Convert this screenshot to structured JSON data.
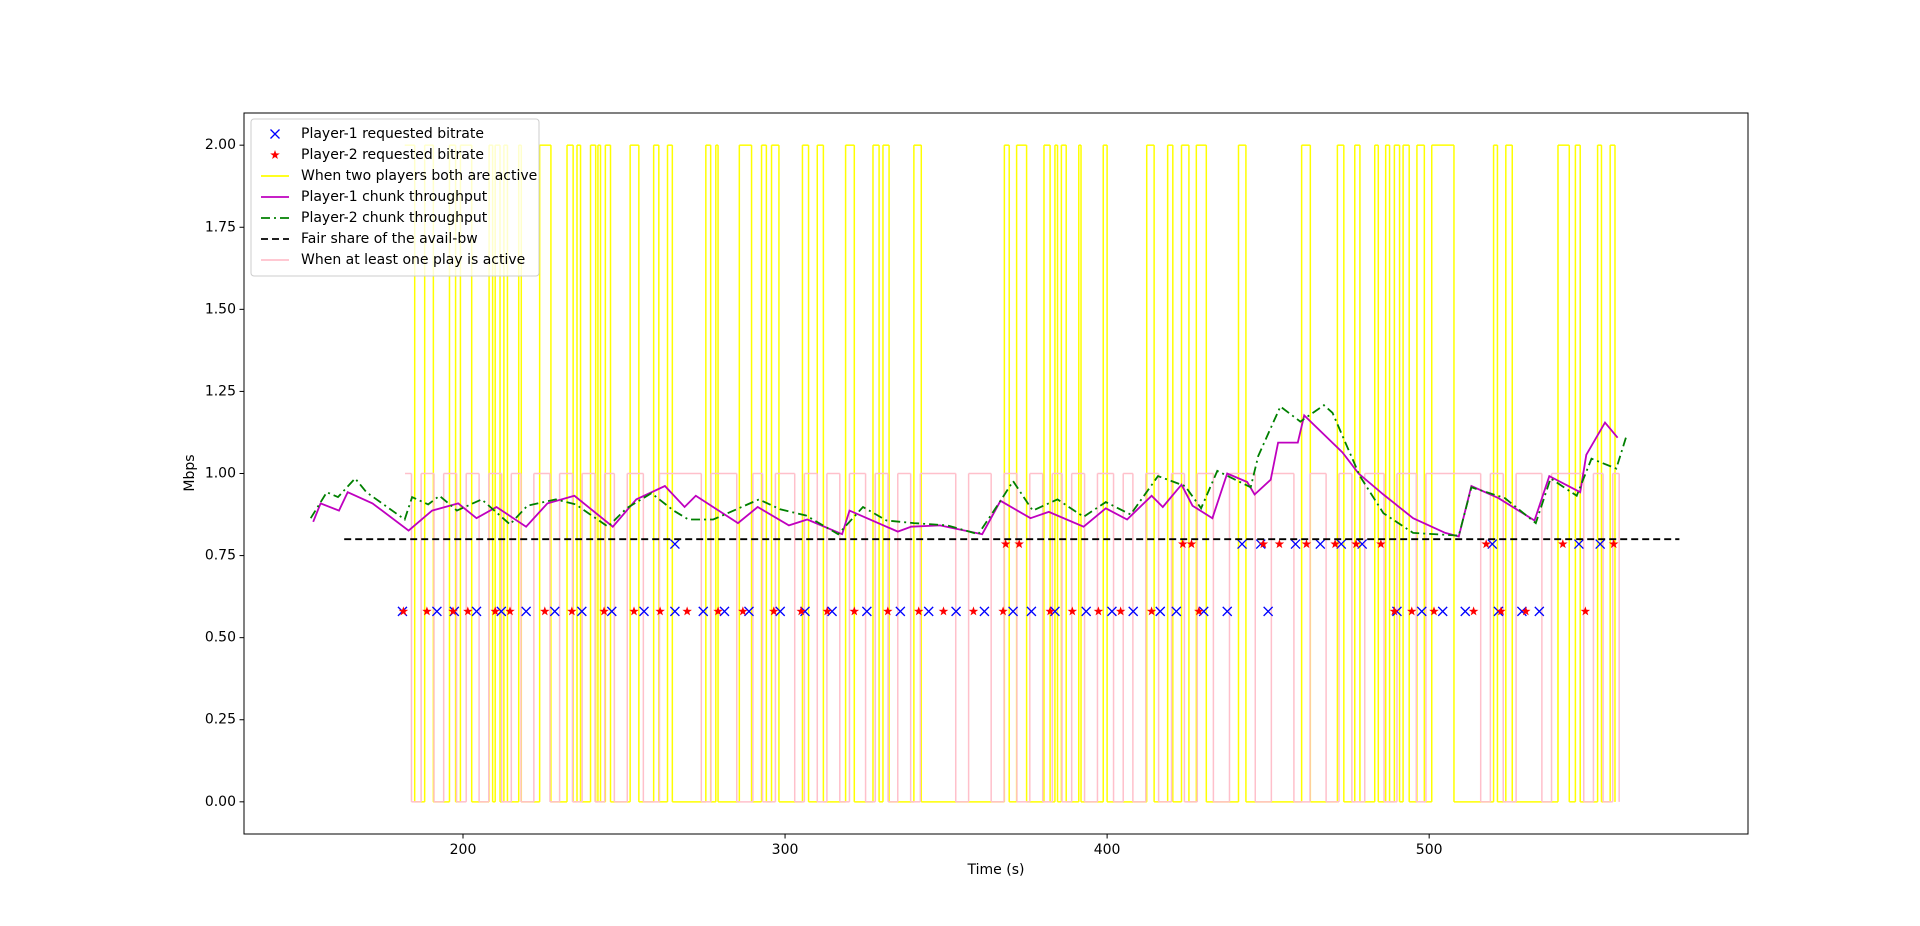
{
  "chart_data": {
    "type": "line",
    "xlabel": "Time (s)",
    "ylabel": "Mbps",
    "xlim": [
      132,
      599
    ],
    "ylim": [
      -0.098,
      2.098
    ],
    "xticks": [
      200,
      300,
      400,
      500
    ],
    "yticks": [
      {
        "value": 0,
        "label": "0.00"
      },
      {
        "value": 0.25,
        "label": "0.25"
      },
      {
        "value": 0.5,
        "label": "0.50"
      },
      {
        "value": 0.75,
        "label": "0.75"
      },
      {
        "value": 1,
        "label": "1.00"
      },
      {
        "value": 1.25,
        "label": "1.25"
      },
      {
        "value": 1.5,
        "label": "1.50"
      },
      {
        "value": 1.75,
        "label": "1.75"
      },
      {
        "value": 2,
        "label": "2.00"
      }
    ],
    "legend": "upper left",
    "series": [
      {
        "name": "Player-1 requested bitrate",
        "color": "#0000ff",
        "mark": "x",
        "x": [
          181.2,
          191.9,
          197.3,
          204.2,
          211.9,
          219.6,
          228.5,
          236.9,
          246.2,
          256.2,
          265.8,
          274.6,
          281.2,
          288.8,
          298.5,
          306.2,
          314.6,
          325.4,
          335.8,
          344.6,
          353.1,
          361.9,
          370.8,
          376.5,
          383.8,
          393.5,
          401.5,
          408.1,
          416.5,
          421.5,
          430.0,
          437.3,
          450.0,
          490.0,
          497.7,
          504.2,
          511.2,
          521.5,
          528.8,
          534.2,
          265.8,
          441.9,
          447.7,
          458.5,
          466.2,
          472.7,
          479.2,
          519.6,
          546.5,
          553.1
        ],
        "values": [
          0.58,
          0.58,
          0.58,
          0.58,
          0.58,
          0.58,
          0.58,
          0.58,
          0.58,
          0.58,
          0.58,
          0.58,
          0.58,
          0.58,
          0.58,
          0.58,
          0.58,
          0.58,
          0.58,
          0.58,
          0.58,
          0.58,
          0.58,
          0.58,
          0.58,
          0.58,
          0.58,
          0.58,
          0.58,
          0.58,
          0.58,
          0.58,
          0.58,
          0.58,
          0.58,
          0.58,
          0.58,
          0.58,
          0.58,
          0.58,
          0.785,
          0.785,
          0.785,
          0.785,
          0.785,
          0.785,
          0.785,
          0.785,
          0.785,
          0.785
        ]
      },
      {
        "name": "Player-2 requested bitrate",
        "color": "#ff0000",
        "mark": "star",
        "x": [
          181.5,
          188.8,
          196.9,
          201.5,
          210.0,
          214.6,
          225.4,
          233.8,
          243.8,
          253.1,
          261.2,
          269.6,
          279.2,
          286.9,
          296.5,
          305.0,
          313.1,
          321.5,
          331.9,
          341.5,
          349.2,
          358.5,
          367.7,
          382.3,
          389.2,
          397.3,
          404.2,
          413.8,
          428.5,
          489.2,
          494.6,
          501.5,
          513.8,
          522.3,
          530.0,
          548.5,
          368.5,
          372.7,
          423.5,
          426.2,
          448.5,
          453.5,
          461.9,
          470.8,
          477.3,
          485.0,
          517.7,
          541.5,
          557.3
        ],
        "values": [
          0.58,
          0.58,
          0.58,
          0.58,
          0.58,
          0.58,
          0.58,
          0.58,
          0.58,
          0.58,
          0.58,
          0.58,
          0.58,
          0.58,
          0.58,
          0.58,
          0.58,
          0.58,
          0.58,
          0.58,
          0.58,
          0.58,
          0.58,
          0.58,
          0.58,
          0.58,
          0.58,
          0.58,
          0.58,
          0.58,
          0.58,
          0.58,
          0.58,
          0.58,
          0.58,
          0.58,
          0.785,
          0.785,
          0.785,
          0.785,
          0.785,
          0.785,
          0.785,
          0.785,
          0.785,
          0.785,
          0.785,
          0.785,
          0.785
        ]
      },
      {
        "name": "When two players both are active",
        "color": "#ffff00",
        "mark": "step",
        "x": [
          181.9,
          185.0,
          188.1,
          190.8,
          195.8,
          197.7,
          199.2,
          202.7,
          208.1,
          209.2,
          210.0,
          211.5,
          212.7,
          213.8,
          217.3,
          218.1,
          223.8,
          227.3,
          232.3,
          234.2,
          235.4,
          236.5,
          239.6,
          241.2,
          241.9,
          242.7,
          244.2,
          245.8,
          251.9,
          254.6,
          259.2,
          260.8,
          263.5,
          265.0,
          275.4,
          276.9,
          278.5,
          279.2,
          285.8,
          289.6,
          292.7,
          294.2,
          295.8,
          298.1,
          305.4,
          307.3,
          310.0,
          311.9,
          318.8,
          321.5,
          327.3,
          329.2,
          330.4,
          332.3,
          340.0,
          342.3,
          368.1,
          369.6,
          371.9,
          375.0,
          380.4,
          382.3,
          383.8,
          384.6,
          385.8,
          387.3,
          391.2,
          391.9,
          398.8,
          400.0,
          412.3,
          414.6,
          418.8,
          420.4,
          423.1,
          425.4,
          427.7,
          430.8,
          440.8,
          443.1,
          460.4,
          463.1,
          471.5,
          473.5,
          476.9,
          478.5,
          483.1,
          484.2,
          486.5,
          487.7,
          489.2,
          490.8,
          491.9,
          493.8,
          496.2,
          498.5,
          500.8,
          507.7,
          520.0,
          521.2,
          523.8,
          525.8,
          540.0,
          543.5,
          545.4,
          546.9,
          552.3,
          553.5,
          556.2,
          557.7
        ],
        "values": [
          2,
          0,
          2,
          0,
          2,
          0,
          2,
          0,
          2,
          0,
          2,
          0,
          2,
          0,
          2,
          0,
          2,
          0,
          2,
          0,
          2,
          0,
          2,
          0,
          2,
          0,
          2,
          0,
          2,
          0,
          2,
          0,
          2,
          0,
          2,
          0,
          2,
          0,
          2,
          0,
          2,
          0,
          2,
          0,
          2,
          0,
          2,
          0,
          2,
          0,
          2,
          0,
          2,
          0,
          2,
          0,
          2,
          0,
          2,
          0,
          2,
          0,
          2,
          0,
          2,
          0,
          2,
          0,
          2,
          0,
          2,
          0,
          2,
          0,
          2,
          0,
          2,
          0,
          2,
          0,
          2,
          0,
          2,
          0,
          2,
          0,
          2,
          0,
          2,
          0,
          2,
          0,
          2,
          0,
          2,
          0,
          2,
          0,
          2,
          0,
          2,
          0,
          2,
          0,
          2,
          0,
          2,
          0,
          2,
          0
        ]
      },
      {
        "name": "Player-1 chunk throughput",
        "color": "#bf00bf",
        "mark": "solid",
        "x": [
          153.5,
          155.8,
          161.5,
          164.2,
          171.9,
          183.1,
          190.4,
          198.5,
          204.2,
          210.4,
          219.6,
          226.2,
          234.6,
          246.5,
          253.8,
          262.7,
          268.8,
          272.3,
          285.4,
          291.5,
          301.2,
          306.9,
          317.7,
          320.0,
          335.0,
          339.2,
          348.1,
          361.2,
          366.9,
          376.2,
          381.9,
          392.7,
          399.6,
          406.2,
          413.8,
          417.3,
          423.1,
          426.5,
          432.7,
          437.3,
          443.5,
          445.8,
          450.8,
          453.1,
          459.2,
          461.2,
          473.1,
          478.1,
          485.8,
          495.0,
          505.0,
          509.2,
          513.1,
          521.5,
          532.7,
          537.3,
          546.9,
          548.8,
          554.6,
          558.5
        ],
        "values": [
          0.853,
          0.909,
          0.887,
          0.943,
          0.909,
          0.826,
          0.887,
          0.909,
          0.864,
          0.898,
          0.838,
          0.909,
          0.932,
          0.838,
          0.921,
          0.962,
          0.898,
          0.932,
          0.849,
          0.898,
          0.842,
          0.86,
          0.815,
          0.887,
          0.823,
          0.838,
          0.842,
          0.815,
          0.917,
          0.864,
          0.883,
          0.838,
          0.894,
          0.86,
          0.932,
          0.898,
          0.966,
          0.902,
          0.864,
          1.0,
          0.974,
          0.936,
          0.981,
          1.094,
          1.094,
          1.177,
          1.064,
          1.0,
          0.936,
          0.864,
          0.819,
          0.808,
          0.962,
          0.925,
          0.857,
          0.992,
          0.943,
          1.057,
          1.155,
          1.109
        ]
      },
      {
        "name": "Player-2 chunk throughput",
        "color": "#008000",
        "mark": "dashdot",
        "x": [
          152.7,
          157.7,
          161.2,
          166.5,
          170.0,
          181.9,
          184.2,
          189.2,
          192.7,
          198.1,
          205.8,
          214.6,
          220.0,
          228.8,
          235.0,
          245.0,
          250.8,
          258.5,
          265.4,
          270.0,
          277.7,
          291.9,
          298.5,
          306.5,
          316.5,
          324.2,
          331.5,
          340.0,
          350.4,
          360.0,
          366.9,
          370.8,
          376.9,
          384.6,
          392.7,
          399.6,
          407.3,
          415.8,
          424.2,
          429.2,
          434.2,
          444.6,
          446.9,
          453.8,
          460.0,
          467.3,
          470.0,
          478.5,
          485.8,
          495.0,
          509.2,
          513.1,
          523.5,
          533.1,
          537.7,
          545.8,
          550.4,
          558.1,
          561.2
        ],
        "values": [
          0.864,
          0.943,
          0.928,
          0.985,
          0.943,
          0.86,
          0.928,
          0.906,
          0.932,
          0.887,
          0.921,
          0.845,
          0.902,
          0.921,
          0.906,
          0.838,
          0.894,
          0.94,
          0.887,
          0.86,
          0.86,
          0.921,
          0.891,
          0.872,
          0.815,
          0.898,
          0.857,
          0.849,
          0.842,
          0.815,
          0.917,
          0.977,
          0.887,
          0.921,
          0.868,
          0.913,
          0.875,
          0.992,
          0.962,
          0.894,
          1.008,
          0.958,
          1.053,
          1.204,
          1.158,
          1.208,
          1.185,
          0.992,
          0.879,
          0.819,
          0.811,
          0.958,
          0.925,
          0.849,
          0.985,
          0.932,
          1.045,
          1.015,
          1.113
        ]
      },
      {
        "name": "Fair share of the avail-bw",
        "color": "#000000",
        "mark": "dashed",
        "x": [
          163.1,
          577.7
        ],
        "values": [
          0.8,
          0.8
        ]
      },
      {
        "name": "When at least one play is active",
        "color": "#ffc0cb",
        "mark": "step",
        "x": [
          182,
          184,
          187,
          191,
          194,
          198,
          201,
          205,
          208,
          212,
          215,
          218,
          222,
          227,
          230,
          234,
          237,
          241,
          244,
          247,
          251,
          256,
          261,
          274,
          277,
          285,
          290,
          293,
          297,
          303,
          306,
          310,
          313,
          317,
          320,
          325,
          328,
          332,
          335,
          339,
          342,
          353,
          357,
          364,
          368,
          372,
          376,
          380,
          383,
          386,
          389,
          393,
          397,
          402,
          405,
          408,
          412,
          416,
          420,
          424,
          428,
          433,
          438,
          446,
          451,
          458,
          463,
          468,
          472,
          476,
          480,
          486,
          490,
          496,
          499,
          516,
          519,
          523,
          527,
          535,
          538,
          548,
          551,
          554,
          557,
          559
        ],
        "values": [
          1,
          0,
          1,
          0,
          1,
          0,
          1,
          0,
          1,
          0,
          1,
          0,
          1,
          0,
          1,
          0,
          1,
          0,
          1,
          0,
          1,
          0,
          1,
          0,
          1,
          0,
          1,
          0,
          1,
          0,
          1,
          0,
          1,
          0,
          1,
          0,
          1,
          0,
          1,
          0,
          1,
          0,
          1,
          0,
          1,
          0,
          1,
          0,
          1,
          0,
          1,
          0,
          1,
          0,
          1,
          0,
          1,
          0,
          1,
          0,
          1,
          0,
          1,
          0,
          1,
          0,
          1,
          0,
          1,
          0,
          1,
          0,
          1,
          0,
          1,
          0,
          1,
          0,
          1,
          0,
          1,
          0,
          1,
          0,
          1,
          0
        ]
      }
    ]
  }
}
